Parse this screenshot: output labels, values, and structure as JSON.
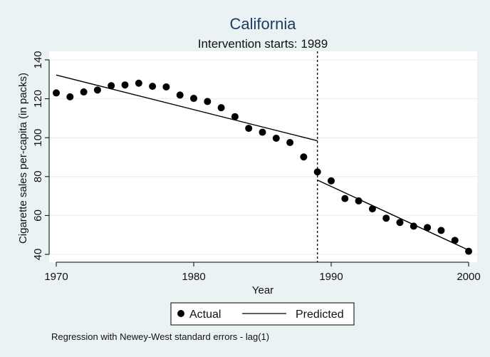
{
  "chart_data": {
    "type": "scatter",
    "title": "California",
    "subtitle": "Intervention starts: 1989",
    "xlabel": "Year",
    "ylabel": "Cigarette sales per-capita (in packs)",
    "xlim": [
      1970,
      2000
    ],
    "ylim": [
      40,
      140
    ],
    "x_ticks": [
      1970,
      1980,
      1990,
      2000
    ],
    "y_ticks": [
      40,
      60,
      80,
      100,
      120,
      140
    ],
    "grid": true,
    "intervention_year": 1989,
    "series": [
      {
        "name": "Actual",
        "marker": "circle",
        "color": "#000000",
        "x": [
          1970,
          1971,
          1972,
          1973,
          1974,
          1975,
          1976,
          1977,
          1978,
          1979,
          1980,
          1981,
          1982,
          1983,
          1984,
          1985,
          1986,
          1987,
          1988,
          1989,
          1990,
          1991,
          1992,
          1993,
          1994,
          1995,
          1996,
          1997,
          1998,
          1999,
          2000
        ],
        "y": [
          123,
          121,
          123.5,
          124.5,
          126.7,
          127.1,
          128,
          126.4,
          126.1,
          121.9,
          120.2,
          118.6,
          115.4,
          110.8,
          104.8,
          102.8,
          99.7,
          97.5,
          90.1,
          82.4,
          77.8,
          68.7,
          67.5,
          63.4,
          58.6,
          56.4,
          54.5,
          53.8,
          52.3,
          47.2,
          41.6
        ]
      },
      {
        "name": "Predicted",
        "marker": "line",
        "color": "#000000",
        "segments": [
          {
            "x": [
              1970,
              1989
            ],
            "y": [
              132.2,
              98.4
            ]
          },
          {
            "x": [
              1989,
              2000
            ],
            "y": [
              78.2,
              42.2
            ]
          }
        ]
      }
    ],
    "legend": {
      "position": "bottom",
      "entries": [
        "Actual",
        "Predicted"
      ]
    },
    "note": "Regression with Newey-West standard errors - lag(1)"
  }
}
